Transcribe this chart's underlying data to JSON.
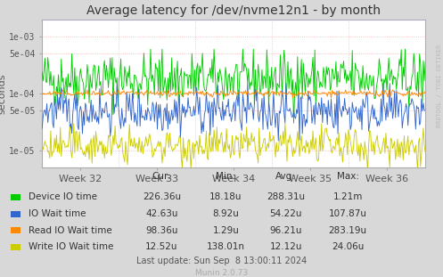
{
  "title": "Average latency for /dev/nvme12n1 - by month",
  "ylabel": "seconds",
  "xlabel_ticks": [
    "Week 32",
    "Week 33",
    "Week 34",
    "Week 35",
    "Week 36"
  ],
  "ylim_log": [
    5e-06,
    0.002
  ],
  "yticks": [
    1e-05,
    5e-05,
    0.0001,
    0.0005,
    0.001
  ],
  "ytick_labels": [
    "1e-05",
    "5e-05",
    "1e-04",
    "5e-04",
    "1e-03"
  ],
  "bg_color": "#d8d8d8",
  "plot_bg_color": "#ffffff",
  "grid_color_h": "#ffaaaa",
  "grid_color_v": "#cccccc",
  "series_colors": [
    "#00cc00",
    "#3366cc",
    "#ff8800",
    "#cccc00"
  ],
  "series_labels": [
    "Device IO time",
    "IO Wait time",
    "Read IO Wait time",
    "Write IO Wait time"
  ],
  "legend_cols": [
    "Cur:",
    "Min:",
    "Avg:",
    "Max:"
  ],
  "legend_data": [
    [
      "226.36u",
      "18.18u",
      "288.31u",
      "1.21m"
    ],
    [
      "42.63u",
      "8.92u",
      "54.22u",
      "107.87u"
    ],
    [
      "98.36u",
      "1.29u",
      "96.21u",
      "283.19u"
    ],
    [
      "12.52u",
      "138.01n",
      "12.12u",
      "24.06u"
    ]
  ],
  "last_update": "Last update: Sun Sep  8 13:00:11 2024",
  "munin_version": "Munin 2.0.73",
  "rrdtool_label": "RRDTOOL / TOBI OETIKER",
  "n_points": 400,
  "seed": 42
}
